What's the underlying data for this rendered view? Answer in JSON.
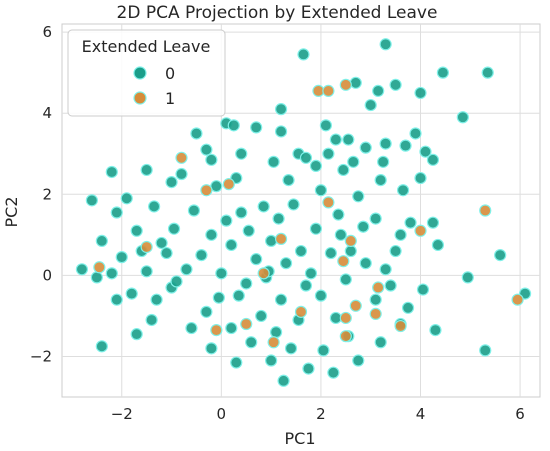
{
  "chart_data": {
    "type": "scatter",
    "title": "2D PCA Projection by Extended Leave",
    "xlabel": "PC1",
    "ylabel": "PC2",
    "xlim": [
      -3.2,
      6.4
    ],
    "ylim": [
      -3.0,
      6.2
    ],
    "xticks": [
      -2,
      0,
      2,
      4,
      6
    ],
    "yticks": [
      -2,
      0,
      2,
      4,
      6
    ],
    "xtick_labels": [
      "−2",
      "0",
      "2",
      "4",
      "6"
    ],
    "ytick_labels": [
      "−2",
      "0",
      "2",
      "4",
      "6"
    ],
    "grid": true,
    "legend": {
      "title": "Extended Leave",
      "placement": "top-left",
      "entries": [
        {
          "label": "0",
          "color": "#1a9e8a"
        },
        {
          "label": "1",
          "color": "#d68c3a"
        }
      ]
    },
    "series": [
      {
        "name": "0",
        "color": "#1a9e8a",
        "points": [
          [
            3.3,
            5.7
          ],
          [
            1.65,
            5.45
          ],
          [
            5.35,
            5.0
          ],
          [
            4.45,
            5.0
          ],
          [
            2.7,
            4.75
          ],
          [
            3.5,
            4.7
          ],
          [
            3.15,
            4.55
          ],
          [
            4.0,
            4.5
          ],
          [
            1.2,
            4.1
          ],
          [
            3.0,
            4.2
          ],
          [
            4.85,
            3.9
          ],
          [
            0.1,
            3.75
          ],
          [
            0.25,
            3.7
          ],
          [
            0.7,
            3.65
          ],
          [
            2.1,
            3.7
          ],
          [
            1.2,
            3.55
          ],
          [
            3.9,
            3.5
          ],
          [
            -0.5,
            3.5
          ],
          [
            2.3,
            3.35
          ],
          [
            2.55,
            3.35
          ],
          [
            3.3,
            3.25
          ],
          [
            3.7,
            3.2
          ],
          [
            -0.3,
            3.1
          ],
          [
            2.9,
            3.15
          ],
          [
            4.1,
            3.05
          ],
          [
            2.15,
            3.0
          ],
          [
            1.55,
            3.0
          ],
          [
            0.4,
            3.0
          ],
          [
            1.7,
            2.9
          ],
          [
            4.25,
            2.85
          ],
          [
            -0.2,
            2.85
          ],
          [
            3.25,
            2.8
          ],
          [
            2.65,
            2.8
          ],
          [
            1.05,
            2.8
          ],
          [
            1.9,
            2.7
          ],
          [
            2.45,
            2.6
          ],
          [
            4.0,
            2.4
          ],
          [
            3.2,
            2.35
          ],
          [
            1.35,
            2.35
          ],
          [
            0.3,
            2.4
          ],
          [
            -0.8,
            2.5
          ],
          [
            -2.2,
            2.55
          ],
          [
            -1.5,
            2.6
          ],
          [
            -1.0,
            2.3
          ],
          [
            -0.1,
            2.2
          ],
          [
            2.0,
            2.1
          ],
          [
            3.65,
            2.1
          ],
          [
            2.75,
            1.95
          ],
          [
            -2.6,
            1.85
          ],
          [
            -1.9,
            1.9
          ],
          [
            -2.1,
            1.55
          ],
          [
            -1.35,
            1.7
          ],
          [
            0.85,
            1.7
          ],
          [
            1.45,
            1.75
          ],
          [
            -0.55,
            1.6
          ],
          [
            0.4,
            1.55
          ],
          [
            3.1,
            1.4
          ],
          [
            3.8,
            1.3
          ],
          [
            4.25,
            1.3
          ],
          [
            2.85,
            1.2
          ],
          [
            -1.7,
            1.1
          ],
          [
            -0.95,
            1.15
          ],
          [
            0.55,
            1.1
          ],
          [
            1.9,
            1.15
          ],
          [
            2.4,
            1.0
          ],
          [
            3.6,
            1.0
          ],
          [
            4.35,
            0.75
          ],
          [
            3.5,
            0.6
          ],
          [
            -2.4,
            0.85
          ],
          [
            -1.2,
            0.8
          ],
          [
            0.2,
            0.75
          ],
          [
            1.0,
            0.85
          ],
          [
            1.6,
            0.6
          ],
          [
            2.2,
            0.55
          ],
          [
            2.9,
            0.3
          ],
          [
            -2.0,
            0.45
          ],
          [
            -0.4,
            0.5
          ],
          [
            0.7,
            0.4
          ],
          [
            1.3,
            0.3
          ],
          [
            5.6,
            0.5
          ],
          [
            3.3,
            0.15
          ],
          [
            4.95,
            -0.05
          ],
          [
            -2.8,
            0.15
          ],
          [
            -2.2,
            0.05
          ],
          [
            -1.5,
            0.1
          ],
          [
            -0.7,
            0.15
          ],
          [
            0.0,
            0.05
          ],
          [
            0.9,
            -0.05
          ],
          [
            1.8,
            0.05
          ],
          [
            2.5,
            -0.1
          ],
          [
            4.05,
            -0.35
          ],
          [
            -1.8,
            -0.45
          ],
          [
            -1.0,
            -0.3
          ],
          [
            0.35,
            -0.5
          ],
          [
            1.2,
            -0.6
          ],
          [
            2.0,
            -0.5
          ],
          [
            3.1,
            -0.6
          ],
          [
            3.75,
            -0.8
          ],
          [
            6.1,
            -0.45
          ],
          [
            -2.1,
            -0.6
          ],
          [
            -0.3,
            -0.9
          ],
          [
            0.8,
            -1.0
          ],
          [
            1.55,
            -1.1
          ],
          [
            2.3,
            -1.05
          ],
          [
            3.6,
            -1.2
          ],
          [
            4.3,
            -1.35
          ],
          [
            -1.4,
            -1.1
          ],
          [
            -0.6,
            -1.3
          ],
          [
            0.2,
            -1.3
          ],
          [
            1.1,
            -1.4
          ],
          [
            2.55,
            -1.5
          ],
          [
            3.2,
            -1.65
          ],
          [
            -1.7,
            -1.45
          ],
          [
            0.6,
            -1.65
          ],
          [
            1.4,
            -1.8
          ],
          [
            2.05,
            -1.85
          ],
          [
            5.3,
            -1.85
          ],
          [
            -2.4,
            -1.75
          ],
          [
            -0.2,
            -1.8
          ],
          [
            1.0,
            -2.1
          ],
          [
            2.75,
            -2.1
          ],
          [
            0.3,
            -2.15
          ],
          [
            1.75,
            -2.3
          ],
          [
            2.25,
            -2.4
          ],
          [
            1.25,
            -2.6
          ],
          [
            -1.1,
            0.55
          ],
          [
            -0.2,
            1.0
          ],
          [
            0.5,
            -0.2
          ],
          [
            -0.9,
            -0.15
          ],
          [
            1.7,
            -0.25
          ],
          [
            -1.6,
            0.6
          ],
          [
            0.1,
            1.35
          ],
          [
            1.15,
            1.4
          ],
          [
            -0.05,
            -0.55
          ],
          [
            0.95,
            0.1
          ],
          [
            2.6,
            0.6
          ],
          [
            -2.5,
            -0.05
          ],
          [
            -1.3,
            -0.6
          ],
          [
            2.35,
            1.5
          ],
          [
            3.4,
            -0.25
          ]
        ]
      },
      {
        "name": "1",
        "color": "#d68c3a",
        "points": [
          [
            2.5,
            4.7
          ],
          [
            1.95,
            4.55
          ],
          [
            2.15,
            4.55
          ],
          [
            -0.8,
            2.9
          ],
          [
            0.15,
            2.25
          ],
          [
            -0.3,
            2.1
          ],
          [
            2.15,
            1.8
          ],
          [
            5.3,
            1.6
          ],
          [
            4.0,
            1.1
          ],
          [
            2.6,
            0.85
          ],
          [
            -1.5,
            0.7
          ],
          [
            2.45,
            0.35
          ],
          [
            -2.45,
            0.2
          ],
          [
            0.85,
            0.05
          ],
          [
            3.15,
            -0.3
          ],
          [
            2.7,
            -0.75
          ],
          [
            5.95,
            -0.6
          ],
          [
            1.6,
            -0.9
          ],
          [
            3.1,
            -0.95
          ],
          [
            2.5,
            -1.05
          ],
          [
            0.5,
            -1.2
          ],
          [
            -0.1,
            -1.35
          ],
          [
            2.5,
            -1.5
          ],
          [
            3.6,
            -1.25
          ],
          [
            1.05,
            -1.65
          ],
          [
            1.2,
            0.9
          ]
        ]
      }
    ]
  }
}
